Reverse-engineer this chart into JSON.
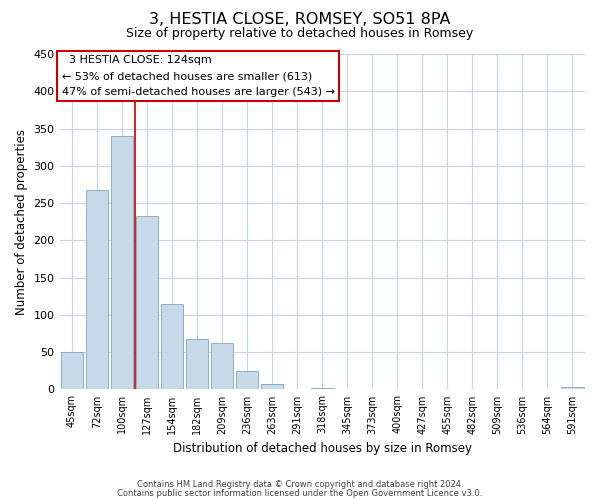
{
  "title": "3, HESTIA CLOSE, ROMSEY, SO51 8PA",
  "subtitle": "Size of property relative to detached houses in Romsey",
  "xlabel": "Distribution of detached houses by size in Romsey",
  "ylabel": "Number of detached properties",
  "bar_labels": [
    "45sqm",
    "72sqm",
    "100sqm",
    "127sqm",
    "154sqm",
    "182sqm",
    "209sqm",
    "236sqm",
    "263sqm",
    "291sqm",
    "318sqm",
    "345sqm",
    "373sqm",
    "400sqm",
    "427sqm",
    "455sqm",
    "482sqm",
    "509sqm",
    "536sqm",
    "564sqm",
    "591sqm"
  ],
  "bar_values": [
    50,
    268,
    340,
    232,
    114,
    68,
    62,
    25,
    7,
    0,
    2,
    0,
    0,
    0,
    0,
    0,
    0,
    0,
    0,
    0,
    3
  ],
  "bar_color": "#c8d9ea",
  "bar_edge_color": "#8ab0cc",
  "vline_color": "#cc0000",
  "ylim": [
    0,
    450
  ],
  "yticks": [
    0,
    50,
    100,
    150,
    200,
    250,
    300,
    350,
    400,
    450
  ],
  "annotation_title": "3 HESTIA CLOSE: 124sqm",
  "annotation_line1": "← 53% of detached houses are smaller (613)",
  "annotation_line2": "47% of semi-detached houses are larger (543) →",
  "annotation_box_color": "#ffffff",
  "annotation_box_edge": "#cc0000",
  "footer1": "Contains HM Land Registry data © Crown copyright and database right 2024.",
  "footer2": "Contains public sector information licensed under the Open Government Licence v3.0.",
  "background_color": "#ffffff",
  "grid_color": "#c8d4e4"
}
